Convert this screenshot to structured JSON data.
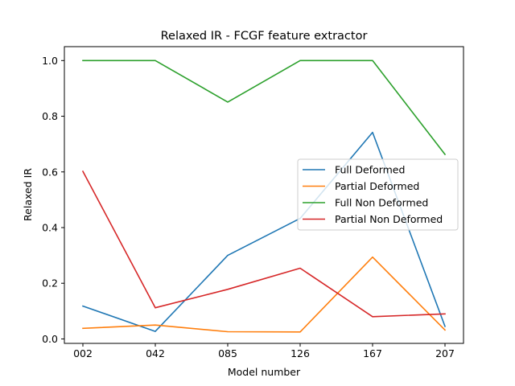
{
  "chart_data": {
    "type": "line",
    "title": "Relaxed IR - FCGF feature extractor",
    "xlabel": "Model number",
    "ylabel": "Relaxed IR",
    "categories": [
      "002",
      "042",
      "085",
      "126",
      "167",
      "207"
    ],
    "ylim": [
      -0.016,
      1.05
    ],
    "yticks": [
      "0.0",
      "0.2",
      "0.4",
      "0.6",
      "0.8",
      "1.0"
    ],
    "grid": false,
    "legend_position": "center-right",
    "series": [
      {
        "name": "Full Deformed",
        "color": "#1f77b4",
        "values": [
          0.118,
          0.027,
          0.3,
          0.433,
          0.742,
          0.045
        ]
      },
      {
        "name": "Partial Deformed",
        "color": "#ff7f0e",
        "values": [
          0.038,
          0.05,
          0.026,
          0.025,
          0.294,
          0.032
        ]
      },
      {
        "name": "Full Non Deformed",
        "color": "#2ca02c",
        "values": [
          1.0,
          1.0,
          0.851,
          1.0,
          1.0,
          0.663
        ]
      },
      {
        "name": "Partial Non Deformed",
        "color": "#d62728",
        "values": [
          0.602,
          0.112,
          0.178,
          0.254,
          0.08,
          0.09
        ]
      }
    ]
  }
}
